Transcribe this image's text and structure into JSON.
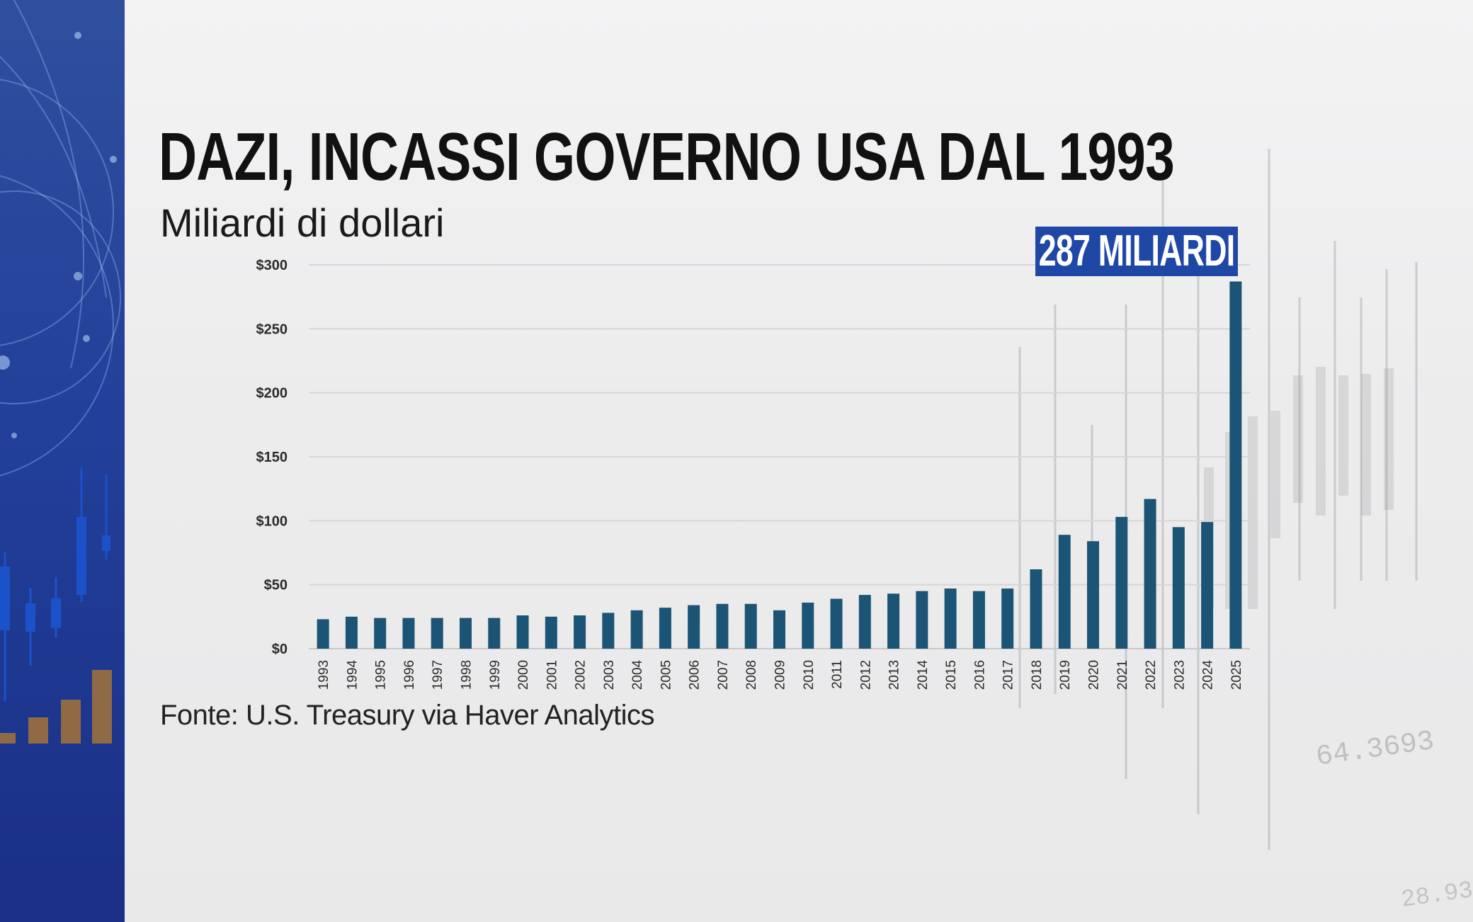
{
  "header": {
    "title": "DAZI, INCASSI GOVERNO USA DAL 1993",
    "subtitle": "Miliardi di dollari"
  },
  "callout": {
    "label": "287 MILIARDI"
  },
  "footer": {
    "source": "Fonte: U.S. Treasury via Haver Analytics"
  },
  "decoration": {
    "ticker_1": "64.3693",
    "ticker_2": "28.93"
  },
  "colors": {
    "bar": "#1b5474",
    "callout_bg": "#1f47a6",
    "left_panel": "#22409a"
  },
  "chart_data": {
    "type": "bar",
    "title": "DAZI, INCASSI GOVERNO USA DAL 1993",
    "subtitle": "Miliardi di dollari",
    "categories": [
      "1993",
      "1994",
      "1995",
      "1996",
      "1997",
      "1998",
      "1999",
      "2000",
      "2001",
      "2002",
      "2003",
      "2004",
      "2005",
      "2006",
      "2007",
      "2008",
      "2009",
      "2010",
      "2011",
      "2012",
      "2013",
      "2014",
      "2015",
      "2016",
      "2017",
      "2018",
      "2019",
      "2020",
      "2021",
      "2022",
      "2023",
      "2024",
      "2025"
    ],
    "values": [
      23,
      25,
      24,
      24,
      24,
      24,
      24,
      26,
      25,
      26,
      28,
      30,
      32,
      34,
      35,
      35,
      30,
      36,
      39,
      42,
      43,
      45,
      47,
      45,
      47,
      62,
      89,
      84,
      103,
      117,
      95,
      99,
      287
    ],
    "y_ticks": [
      "$0",
      "$50",
      "$100",
      "$150",
      "$200",
      "$250",
      "$300"
    ],
    "y_tick_values": [
      0,
      50,
      100,
      150,
      200,
      250,
      300
    ],
    "ylim": [
      0,
      300
    ],
    "grid": true,
    "highlight": {
      "category": "2025",
      "label": "287 MILIARDI"
    }
  }
}
